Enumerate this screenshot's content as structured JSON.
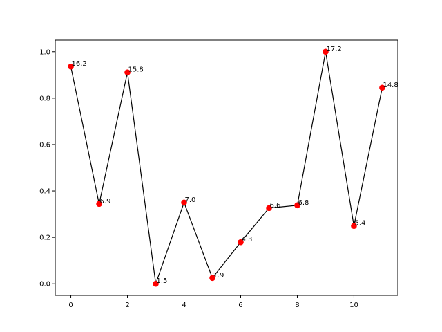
{
  "chart_data": {
    "type": "line",
    "title": "",
    "xlabel": "",
    "ylabel": "",
    "xlim": [
      -0.55,
      11.55
    ],
    "ylim": [
      -0.05,
      1.05
    ],
    "x_ticks": [
      0,
      2,
      4,
      6,
      8,
      10
    ],
    "y_ticks": [
      0.0,
      0.2,
      0.4,
      0.6,
      0.8,
      1.0
    ],
    "x_tick_labels": [
      "0",
      "2",
      "4",
      "6",
      "8",
      "10"
    ],
    "y_tick_labels": [
      "0.0",
      "0.2",
      "0.4",
      "0.6",
      "0.8",
      "1.0"
    ],
    "grid": false,
    "line_color": "#000000",
    "marker_color": "#ff0000",
    "series": [
      {
        "x": [
          0,
          1,
          2,
          3,
          4,
          5,
          6,
          7,
          8,
          9,
          10,
          11
        ],
        "y": [
          0.936,
          0.344,
          0.911,
          0.0,
          0.35,
          0.025,
          0.179,
          0.326,
          0.338,
          1.0,
          0.249,
          0.845
        ],
        "labels": [
          "16.2",
          "6.9",
          "15.8",
          "1.5",
          "7.0",
          "1.9",
          "4.3",
          "6.6",
          "6.8",
          "17.2",
          "5.4",
          "14.8"
        ]
      }
    ]
  }
}
